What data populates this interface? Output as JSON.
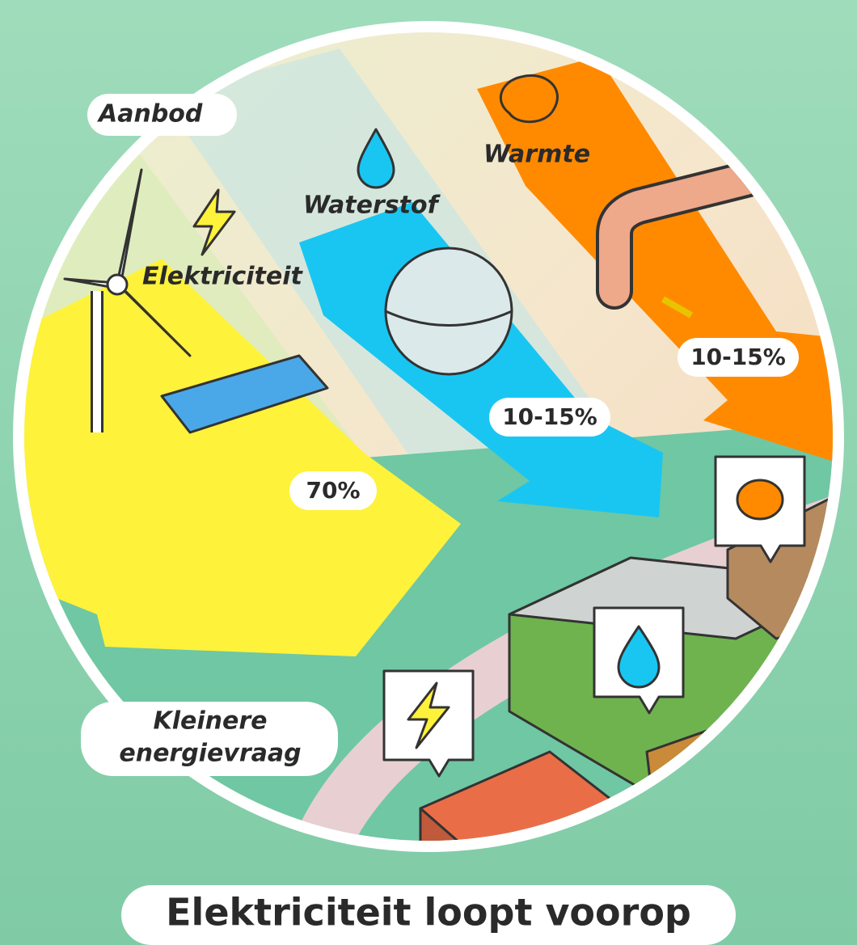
{
  "supply_label": "Aanbod",
  "carriers": [
    {
      "name": "Warmte",
      "share": "10-15%"
    },
    {
      "name": "Waterstof",
      "share": "10-15%"
    },
    {
      "name": "Elektriciteit",
      "share": "70%"
    }
  ],
  "demand_label": [
    "Kleinere",
    "energievraag"
  ],
  "title": "Elektriciteit loopt voorop"
}
